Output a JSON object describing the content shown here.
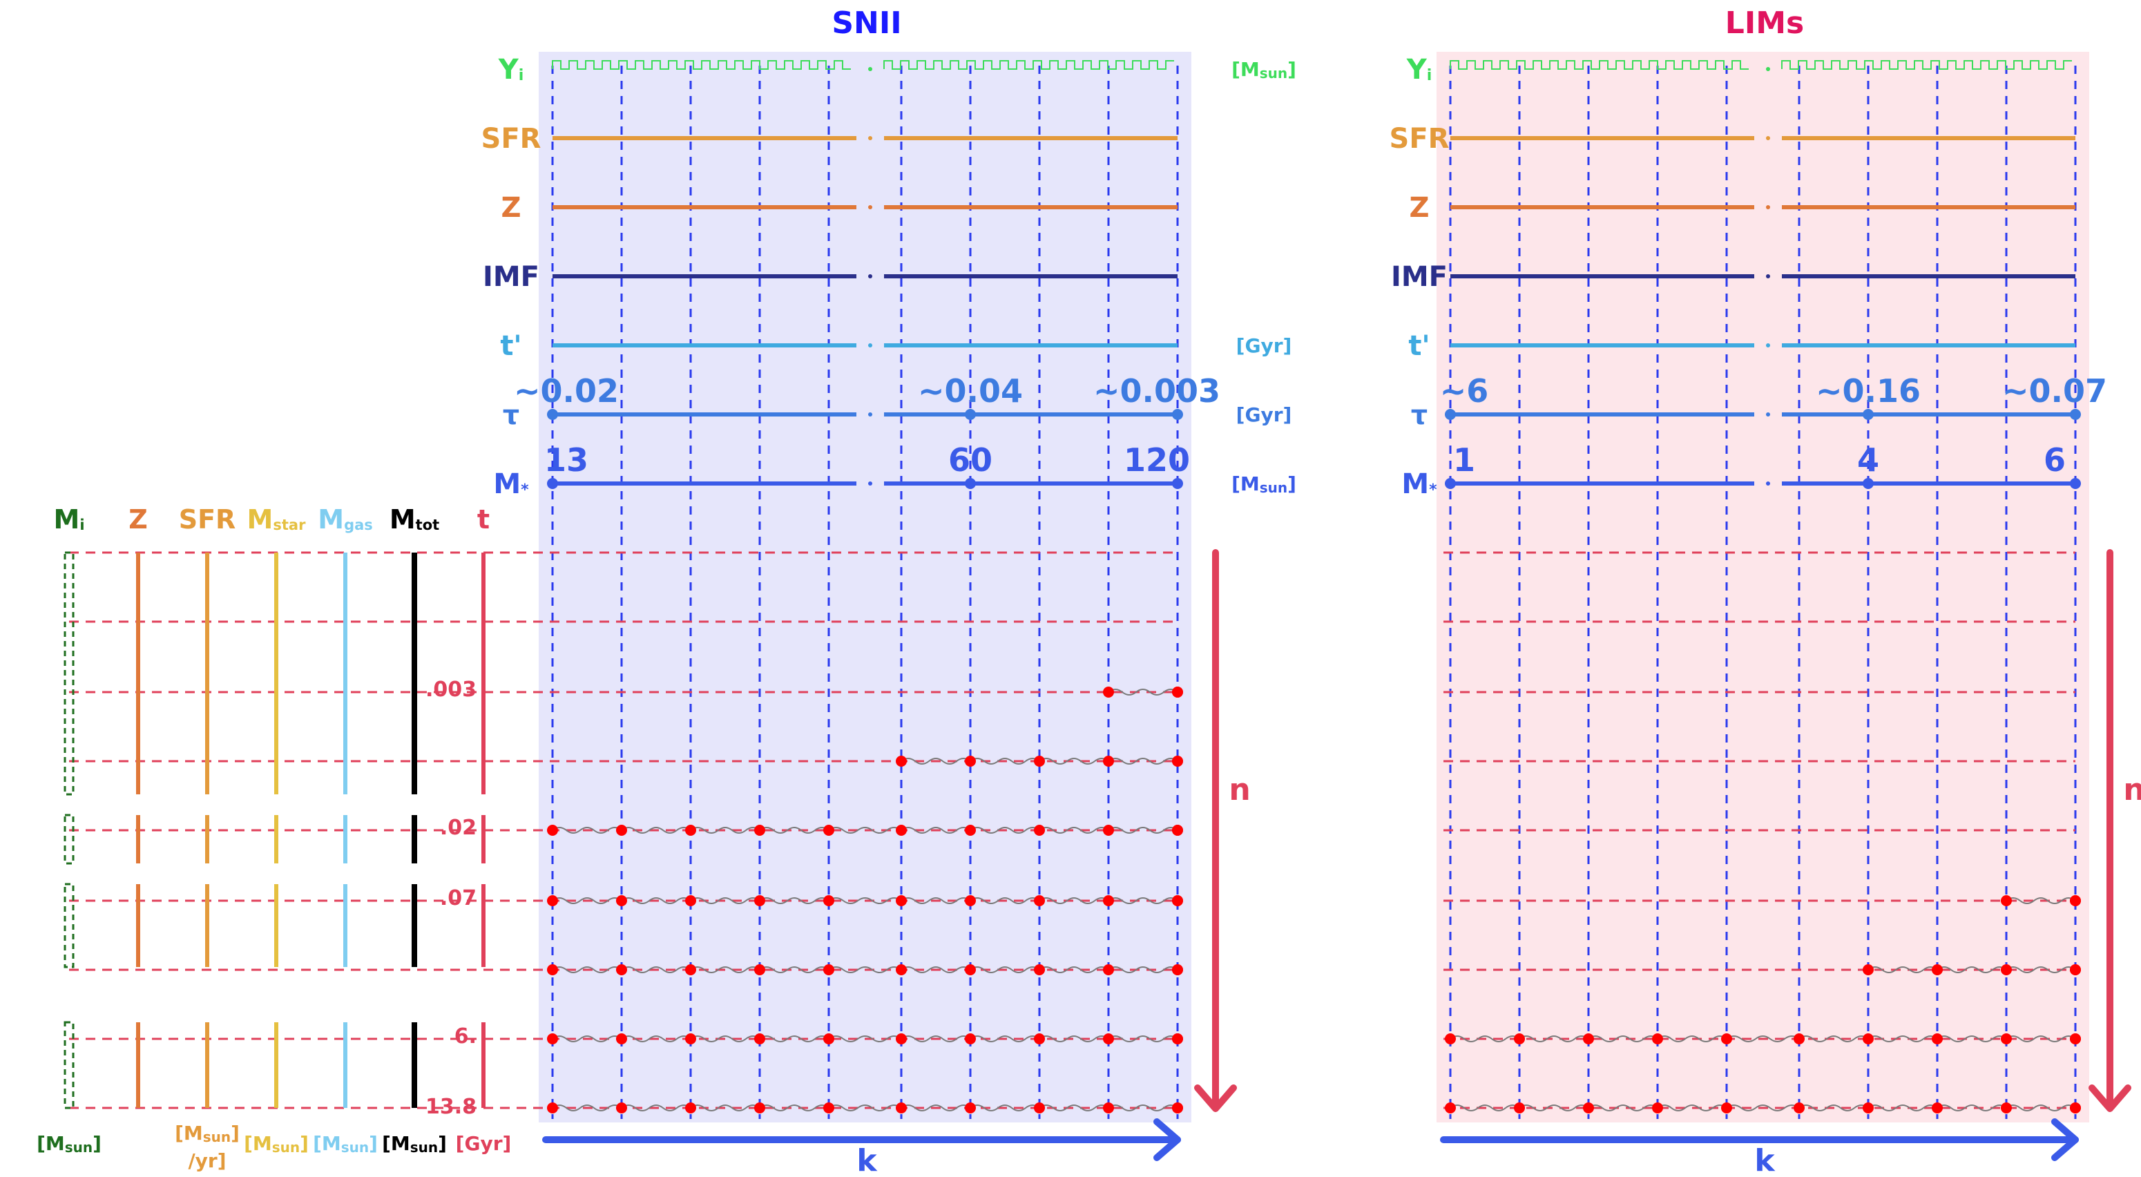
{
  "panels": [
    {
      "id": "snii",
      "title": "SNII",
      "title_color": "#1a1aff",
      "bg_color": "#e6e6fb",
      "row_labels": [
        "Yi",
        "SFR",
        "Z",
        "IMF",
        "t'",
        "τ",
        "M*"
      ],
      "right_units": [
        "[Msun]",
        "",
        "",
        "",
        "[Gyr]",
        "[Gyr]",
        "[Msun]"
      ],
      "tau_values": [
        "~0.02",
        "~0.04",
        "~0.003"
      ],
      "mass_values": [
        "13",
        "60",
        "120"
      ],
      "wave_counts": [
        1,
        4,
        9,
        9,
        9,
        9,
        9
      ],
      "n_label": "n",
      "k_label": "k"
    },
    {
      "id": "lims",
      "title": "LIMs",
      "title_color": "#e0145e",
      "bg_color": "#fde6ea",
      "row_labels": [
        "Yi",
        "SFR",
        "Z",
        "IMF",
        "t'",
        "τ",
        "M*"
      ],
      "right_units": [
        "",
        "",
        "",
        "",
        "",
        "",
        ""
      ],
      "tau_values": [
        "~6",
        "~0.16",
        "~0.07"
      ],
      "mass_values": [
        "1",
        "4",
        "6"
      ],
      "wave_counts": [
        0,
        0,
        0,
        1,
        3,
        9,
        9
      ],
      "n_label": "n",
      "k_label": "k"
    }
  ],
  "grid_columns": {
    "headers": [
      "Mi",
      "Z",
      "SFR",
      "Mstar",
      "Mgas",
      "Mtot",
      "t"
    ],
    "units": [
      "[Msun]",
      "[Msun/yr]",
      "[Msun]",
      "[Msun]",
      "[Msun]",
      "[Gyr]"
    ],
    "t_values": [
      ".003",
      ".02",
      ".07",
      "6.",
      "13.8"
    ]
  },
  "colors": {
    "yield": "#3ddc5a",
    "sfr": "#e39a3b",
    "z": "#e07838",
    "imf": "#2a2f8a",
    "tprime": "#3faae0",
    "tau": "#3d7be0",
    "mass": "#3a5ae8",
    "mi": "#1e6e1e",
    "mstar": "#e5c040",
    "mgas": "#7fcdf0",
    "mtot": "#000000",
    "time": "#e0405a",
    "grid_blue": "#2a3aee",
    "grid_red": "#e0405a",
    "dot": "#ff0000",
    "arrow": "#3a5ae8"
  }
}
